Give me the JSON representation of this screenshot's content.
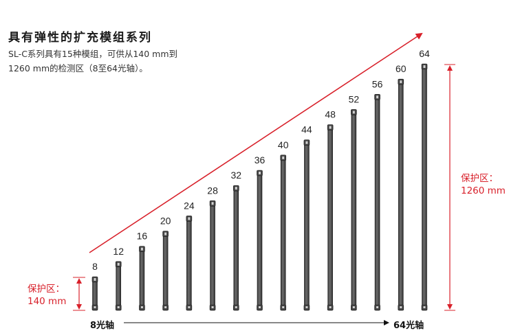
{
  "title": "具有弹性的扩充模组系列",
  "description": {
    "line1": "SL-C系列具有15种模组，可供从140 mm到",
    "line2": "1260 mm的检测区（8至64光轴）。"
  },
  "bars": [
    {
      "label": "8"
    },
    {
      "label": "12"
    },
    {
      "label": "16"
    },
    {
      "label": "20"
    },
    {
      "label": "24"
    },
    {
      "label": "28"
    },
    {
      "label": "32"
    },
    {
      "label": "36"
    },
    {
      "label": "40"
    },
    {
      "label": "44"
    },
    {
      "label": "48"
    },
    {
      "label": "52"
    },
    {
      "label": "56"
    },
    {
      "label": "60"
    },
    {
      "label": "64"
    }
  ],
  "min_dimension": {
    "label": "保护区：",
    "value": "140 mm"
  },
  "max_dimension": {
    "label": "保护区：",
    "value": "1260 mm"
  },
  "axis": {
    "start": "8光轴",
    "end": "64光轴"
  },
  "colors": {
    "accent": "#d8202a",
    "bar": "#555555",
    "bar_dark": "#333333"
  }
}
